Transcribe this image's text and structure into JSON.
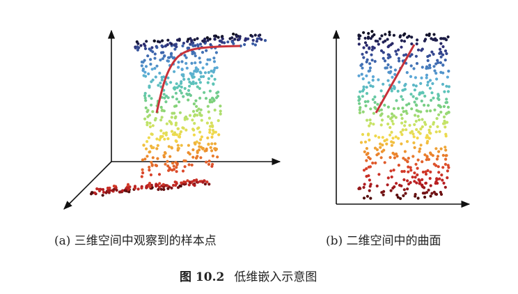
{
  "panels": [
    {
      "label": "(a) 三维空间中观察到的样本点",
      "kind": "3d-s-curve-scatter"
    },
    {
      "label": "(b) 二维空间中的曲面",
      "kind": "2d-unrolled-scatter"
    }
  ],
  "figure": {
    "number": "图 10.2",
    "title": "低维嵌入示意图"
  },
  "colors": {
    "curve": "#c8323a",
    "axis": "#111111",
    "colormap": [
      "#4a0c0c",
      "#b81e22",
      "#d8402a",
      "#ec8a2c",
      "#f4d84a",
      "#c4e468",
      "#7cd07c",
      "#5cc4b8",
      "#5ca8d8",
      "#3c64ac",
      "#2c2c74",
      "#0c0c18"
    ]
  }
}
